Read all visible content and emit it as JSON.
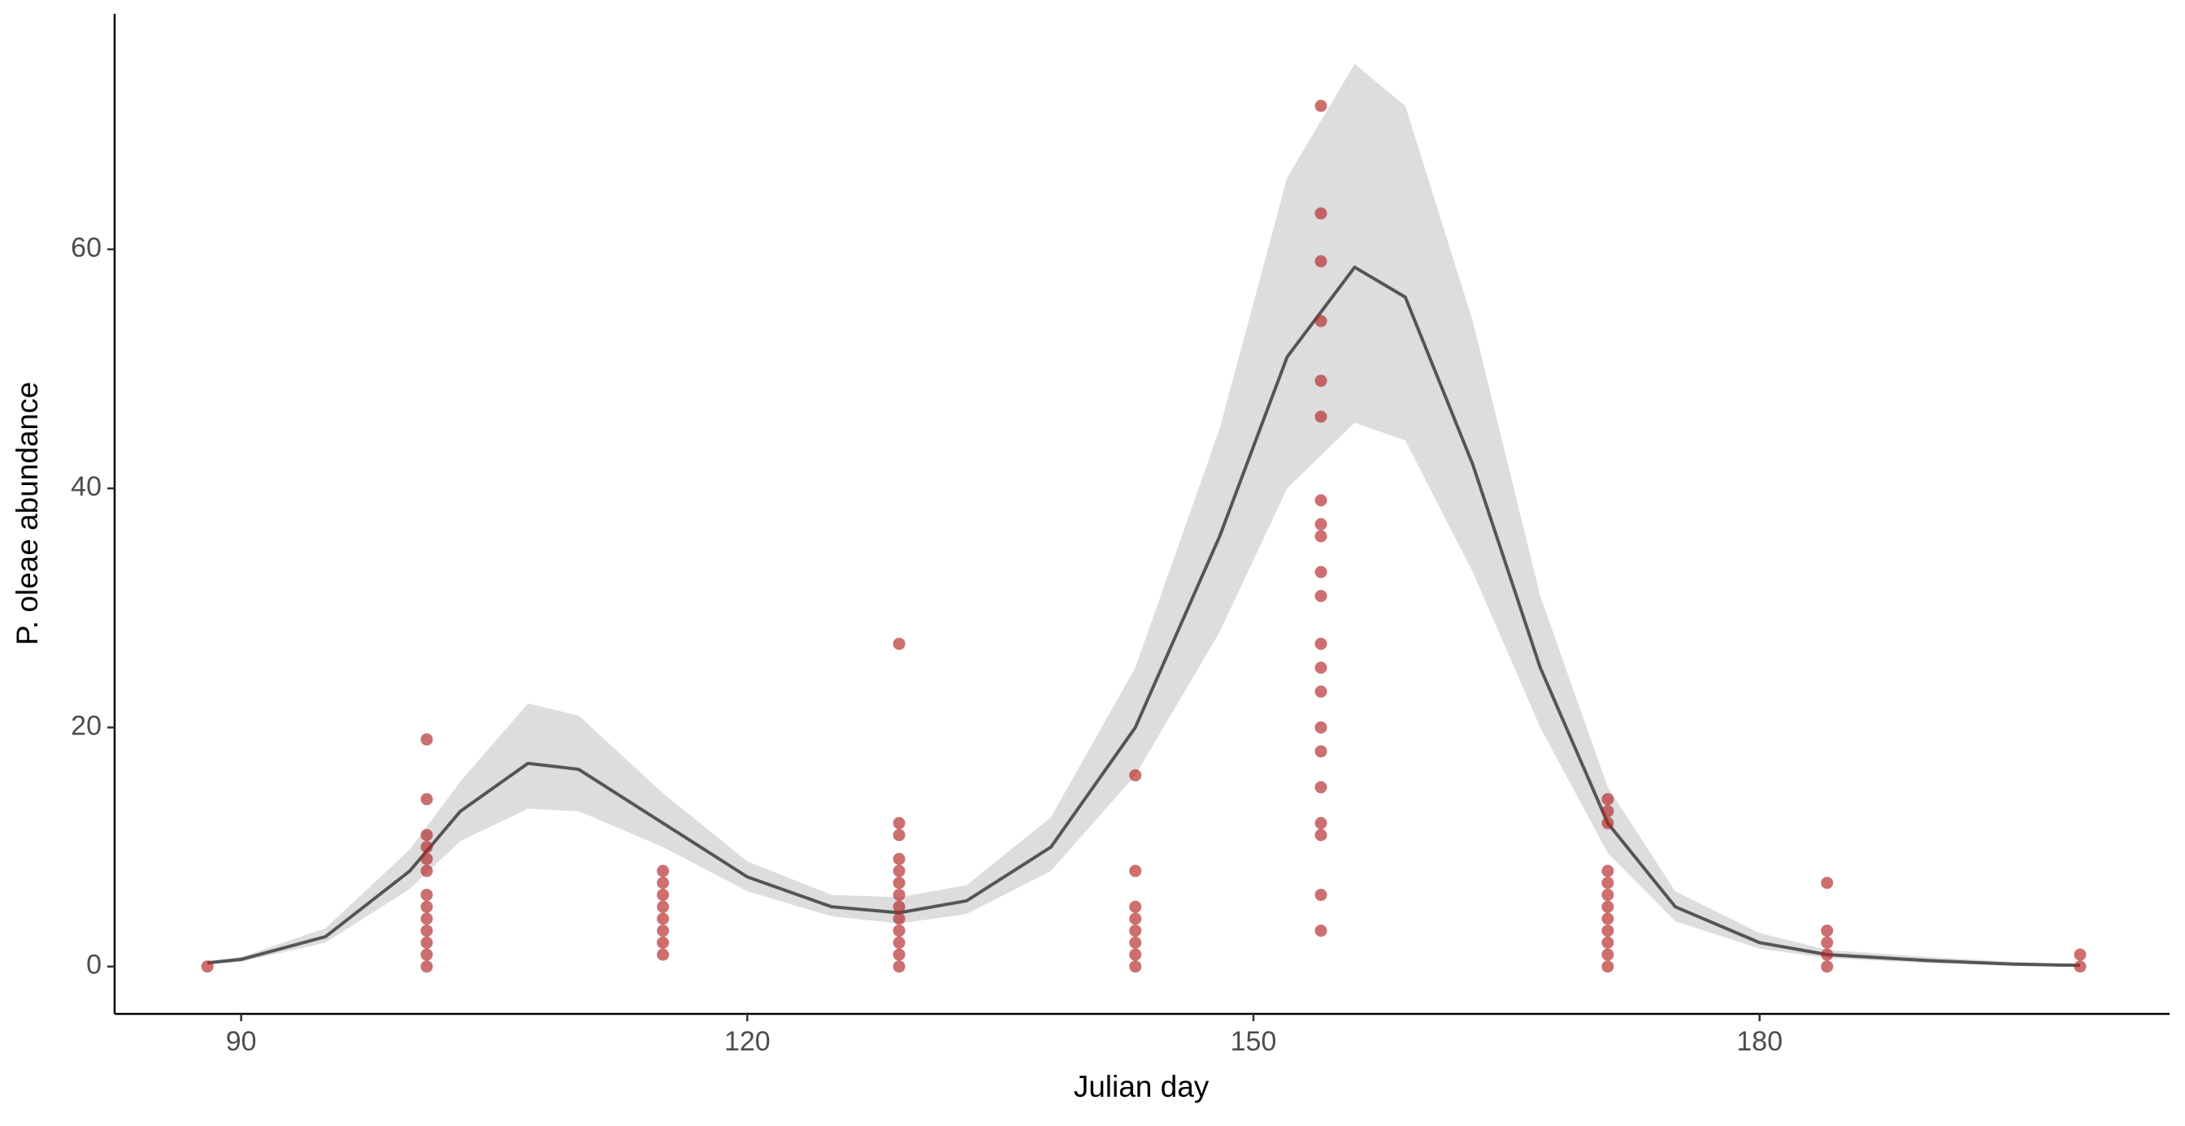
{
  "chart_data": {
    "type": "scatter",
    "x_label": "Julian day",
    "y_label": "P. oleae abundance",
    "xlim": [
      82.5,
      204.3
    ],
    "ylim": [
      -3.96,
      79.7
    ],
    "xticks": [
      90,
      120,
      150,
      180
    ],
    "yticks": [
      0,
      20,
      40,
      60
    ],
    "grid": false,
    "points": {
      "color": "#b22222",
      "x": [
        88,
        101,
        101,
        101,
        101,
        101,
        101,
        101,
        101,
        101,
        101,
        101,
        101,
        101,
        115,
        115,
        115,
        115,
        115,
        115,
        115,
        115,
        129,
        129,
        129,
        129,
        129,
        129,
        129,
        129,
        129,
        129,
        129,
        129,
        129,
        143,
        143,
        143,
        143,
        143,
        143,
        143,
        143,
        154,
        154,
        154,
        154,
        154,
        154,
        154,
        154,
        154,
        154,
        154,
        154,
        154,
        154,
        154,
        154,
        154,
        154,
        154,
        154,
        154,
        171,
        171,
        171,
        171,
        171,
        171,
        171,
        171,
        171,
        171,
        171,
        171,
        184,
        184,
        184,
        184,
        184,
        199,
        199
      ],
      "y": [
        0,
        19,
        14,
        11,
        10,
        9,
        8,
        6,
        5,
        4,
        3,
        2,
        1,
        0,
        8,
        7,
        6,
        5,
        4,
        3,
        2,
        1,
        27,
        12,
        11,
        9,
        8,
        7,
        6,
        5,
        4,
        3,
        2,
        1,
        0,
        16,
        8,
        5,
        4,
        3,
        2,
        1,
        0,
        72,
        63,
        59,
        54,
        49,
        46,
        39,
        37,
        36,
        33,
        31,
        27,
        25,
        23,
        20,
        18,
        15,
        12,
        11,
        6,
        3,
        14,
        13,
        12,
        8,
        7,
        6,
        5,
        4,
        3,
        2,
        1,
        0,
        7,
        3,
        2,
        1,
        0,
        1,
        0
      ]
    },
    "fit": {
      "color": "#555555",
      "band_color": "#dddddd",
      "x": [
        88,
        90,
        95,
        100,
        103,
        107,
        110,
        115,
        120,
        125,
        129,
        133,
        138,
        143,
        148,
        152,
        156,
        159,
        163,
        167,
        171,
        175,
        180,
        184,
        190,
        195,
        199
      ],
      "y": [
        0.3,
        0.6,
        2.5,
        8,
        13,
        17,
        16.5,
        12,
        7.5,
        5,
        4.5,
        5.5,
        10,
        20,
        36,
        51,
        58.5,
        56,
        42,
        25,
        12,
        5,
        2,
        1,
        0.5,
        0.2,
        0.1
      ],
      "lower": [
        0.2,
        0.4,
        2,
        6.5,
        10.5,
        13.2,
        13,
        10,
        6.3,
        4.2,
        3.6,
        4.4,
        8,
        16,
        28,
        40,
        45.5,
        44,
        33,
        20,
        9.5,
        3.8,
        1.5,
        0.7,
        0.3,
        0.1,
        0.05
      ],
      "upper": [
        0.5,
        0.8,
        3.2,
        9.8,
        15.5,
        22,
        21,
        14.5,
        8.8,
        6,
        5.8,
        6.8,
        12.5,
        25,
        45,
        66,
        75.5,
        72,
        54,
        31,
        15,
        6.3,
        2.8,
        1.4,
        0.8,
        0.4,
        0.2
      ]
    }
  }
}
